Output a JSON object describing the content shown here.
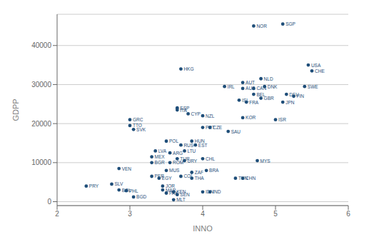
{
  "chart_data": {
    "type": "scatter",
    "xlabel": "INNO",
    "ylabel": "GDPP",
    "color": "#1f4e79",
    "grid": "y",
    "xlim": [
      2,
      6
    ],
    "ylim": [
      -1000,
      48000
    ],
    "xticks": [
      2,
      3,
      4,
      5,
      6
    ],
    "yticks": [
      0,
      10000,
      20000,
      30000,
      40000
    ],
    "labels": [
      "NOR",
      "SGP",
      "HKG",
      "USA",
      "CHE",
      "NLD",
      "AUT",
      "IRL",
      "AUS",
      "CAN",
      "DNK",
      "SWE",
      "BEL",
      "DEU",
      "FIN",
      "ISL",
      "GBR",
      "FRA",
      "JPN",
      "ESP",
      "ITA",
      "CYP",
      "NZL",
      "KOR",
      "ISR",
      "GRC",
      "TTO",
      "SVK",
      "PRT",
      "CZE",
      "SAU",
      "POL",
      "HUN",
      "RUS",
      "EST",
      "LVA",
      "ARG",
      "LTU",
      "MEX",
      "TUR",
      "URY",
      "BGR",
      "ROM",
      "CHL",
      "MYS",
      "VEN",
      "MUS",
      "ZAF",
      "BRA",
      "PER",
      "EGY",
      "COL",
      "THA",
      "TUN",
      "CHN",
      "SLV",
      "PRY",
      "BOL",
      "PHL",
      "JOR",
      "MAR",
      "KEN",
      "PAK",
      "SEN",
      "MLT",
      "IDN",
      "IND",
      "BGD"
    ],
    "x": [
      4.7,
      5.1,
      3.7,
      5.45,
      5.5,
      4.8,
      4.55,
      4.3,
      4.55,
      4.7,
      4.85,
      5.4,
      4.7,
      5.15,
      5.25,
      4.5,
      4.8,
      4.6,
      5.1,
      3.65,
      3.65,
      3.8,
      4.0,
      4.55,
      5.0,
      3.0,
      3.0,
      3.05,
      4.0,
      4.1,
      4.35,
      3.5,
      3.85,
      3.7,
      3.9,
      3.35,
      3.55,
      3.75,
      3.3,
      3.65,
      3.75,
      3.3,
      3.55,
      4.0,
      4.75,
      2.85,
      3.5,
      3.85,
      4.05,
      3.3,
      3.4,
      3.7,
      3.85,
      4.45,
      4.55,
      2.75,
      2.4,
      2.85,
      2.95,
      3.45,
      3.45,
      3.6,
      3.5,
      3.65,
      3.6,
      4.0,
      4.1,
      3.05
    ],
    "values": [
      45000,
      45500,
      34000,
      35000,
      33500,
      31500,
      30500,
      29500,
      29000,
      29000,
      29500,
      29500,
      27500,
      27500,
      27000,
      26000,
      26500,
      25500,
      25500,
      24000,
      23500,
      22500,
      22000,
      21500,
      21000,
      21000,
      19500,
      18500,
      19000,
      19000,
      18000,
      15500,
      15500,
      14500,
      14500,
      13000,
      12500,
      13000,
      11500,
      11000,
      10500,
      10000,
      10000,
      11000,
      10500,
      8500,
      8000,
      7500,
      8000,
      6500,
      6000,
      6500,
      6000,
      6000,
      6000,
      4500,
      4000,
      3000,
      2800,
      4000,
      3000,
      2500,
      2200,
      1800,
      500,
      2500,
      2500,
      1200
    ]
  }
}
